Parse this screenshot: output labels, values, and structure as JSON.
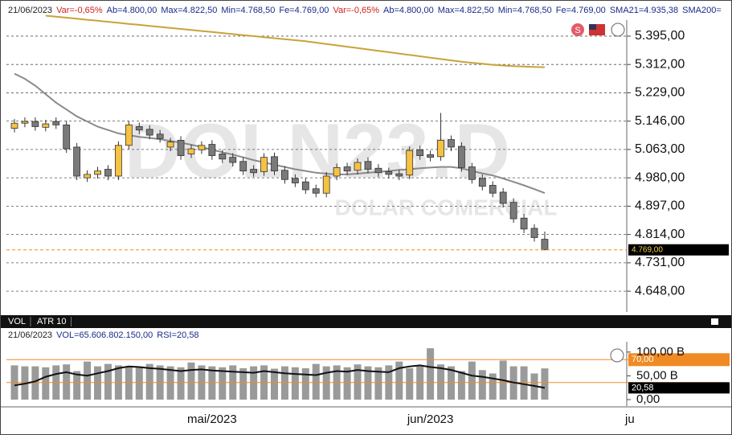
{
  "chart_data": [
    {
      "type": "candlestick",
      "title": "DOLN23:D",
      "subtitle": "DOLAR COMERCIAL",
      "header_items": [
        {
          "text": "21/06/2023",
          "color": "#222222"
        },
        {
          "text": "Var=-0,65%",
          "color": "#d02020"
        },
        {
          "text": "Ab=4.800,00",
          "color": "#1a2a8a"
        },
        {
          "text": "Max=4.822,50",
          "color": "#1a2a8a"
        },
        {
          "text": "Min=4.768,50",
          "color": "#1a2a8a"
        },
        {
          "text": "Fe=4.769,00",
          "color": "#1a2a8a"
        },
        {
          "text": "Var=-0,65%",
          "color": "#d02020"
        },
        {
          "text": "Ab=4.800,00",
          "color": "#1a2a8a"
        },
        {
          "text": "Max=4.822,50",
          "color": "#1a2a8a"
        },
        {
          "text": "Min=4.768,50",
          "color": "#1a2a8a"
        },
        {
          "text": "Fe=4.769,00",
          "color": "#1a2a8a"
        },
        {
          "text": "SMA21=4.935,38",
          "color": "#1a2a8a"
        },
        {
          "text": "SMA200=",
          "color": "#1a2a8a"
        }
      ],
      "categories": [
        null,
        null,
        null,
        null,
        null,
        null,
        null,
        null,
        null,
        null,
        null,
        null,
        null,
        null,
        null,
        null,
        null,
        null,
        null,
        "mai/2023",
        null,
        null,
        null,
        null,
        null,
        null,
        null,
        null,
        null,
        null,
        null,
        null,
        null,
        null,
        null,
        null,
        null,
        null,
        null,
        null,
        "jun/2023",
        null,
        null,
        null,
        null,
        null,
        null,
        null,
        null,
        null,
        null,
        null
      ],
      "extra_x_label": "ju",
      "open": [
        5125,
        5140,
        5145,
        5128,
        5145,
        5135,
        5070,
        4980,
        4990,
        5005,
        4985,
        5075,
        5130,
        5122,
        5108,
        5070,
        5090,
        5050,
        5062,
        5078,
        5050,
        5040,
        5028,
        5005,
        4998,
        5042,
        5002,
        4978,
        4968,
        4948,
        4935,
        4985,
        5012,
        5002,
        5028,
        5008,
        4998,
        4992,
        4988,
        5062,
        5048,
        5042,
        5092,
        5072,
        5012,
        4978,
        4958,
        4938,
        4908,
        4862,
        4832,
        4800
      ],
      "high": [
        5152,
        5157,
        5157,
        5150,
        5157,
        5147,
        5082,
        5002,
        5012,
        5017,
        5087,
        5147,
        5142,
        5134,
        5120,
        5097,
        5102,
        5077,
        5087,
        5090,
        5062,
        5052,
        5040,
        5017,
        5052,
        5054,
        5014,
        4990,
        4980,
        4960,
        4997,
        5022,
        5024,
        5037,
        5040,
        5020,
        5010,
        5004,
        5072,
        5074,
        5060,
        5170,
        5104,
        5084,
        5024,
        4990,
        4970,
        4950,
        4920,
        4874,
        4844,
        4822.5
      ],
      "low": [
        5113,
        5128,
        5118,
        5116,
        5123,
        5053,
        4973,
        4968,
        4978,
        4973,
        4973,
        5063,
        5108,
        5093,
        5083,
        5058,
        5033,
        5038,
        5050,
        5033,
        5023,
        5013,
        4988,
        4983,
        4986,
        4988,
        4963,
        4953,
        4933,
        4923,
        4923,
        4973,
        4988,
        4990,
        4993,
        4983,
        4978,
        4973,
        4976,
        5033,
        5028,
        5030,
        5058,
        4998,
        4963,
        4943,
        4923,
        4893,
        4848,
        4818,
        4793,
        4768.5
      ],
      "close": [
        5140,
        5145,
        5130,
        5138,
        5135,
        5065,
        4985,
        4990,
        5000,
        4985,
        5075,
        5135,
        5120,
        5105,
        5095,
        5085,
        5045,
        5065,
        5075,
        5045,
        5035,
        5025,
        5000,
        4995,
        5040,
        5000,
        4975,
        4965,
        4945,
        4935,
        4985,
        5010,
        5000,
        5025,
        5005,
        4995,
        4990,
        4985,
        5060,
        5045,
        5040,
        5090,
        5070,
        5010,
        4975,
        4955,
        4935,
        4905,
        4860,
        4830,
        4805,
        4769
      ],
      "up_color": "#f5c242",
      "down_color": "#7a7a7a",
      "series": [
        {
          "color": "#8a8a8a",
          "values": [
            5285,
            5270,
            5250,
            5225,
            5200,
            5180,
            5160,
            5145,
            5130,
            5120,
            5110,
            5105,
            5100,
            5097,
            5093,
            5088,
            5083,
            5077,
            5070,
            5062,
            5055,
            5048,
            5040,
            5032,
            5025,
            5018,
            5012,
            5005,
            5000,
            4995,
            4992,
            4990,
            4990,
            4992,
            4995,
            4997,
            5000,
            5003,
            5005,
            5008,
            5010,
            5012,
            5012,
            5008,
            5000,
            4993,
            4987,
            4978,
            4968,
            4958,
            4947,
            4935.38
          ]
        },
        {
          "color": "#c9a23a",
          "values": [
            null,
            null,
            null,
            5455,
            5452,
            5449,
            5446,
            5443,
            5440,
            5437,
            5434,
            5431,
            5428,
            5425,
            5422,
            5419,
            5416,
            5413,
            5410,
            5407,
            5404,
            5401,
            5398,
            5395,
            5392,
            5389,
            5386,
            5383,
            5380,
            5376,
            5372,
            5368,
            5364,
            5360,
            5356,
            5352,
            5348,
            5344,
            5340,
            5336,
            5332,
            5328,
            5324,
            5320,
            5317,
            5314,
            5311,
            5309,
            5307,
            5306,
            5305,
            5304
          ]
        }
      ],
      "last_label": "4.769,00",
      "last_color": "#f08a24",
      "ylim": [
        4587,
        5482
      ],
      "yticks": [
        {
          "value": 5395,
          "label": "5.395,00"
        },
        {
          "value": 5312,
          "label": "5.312,00"
        },
        {
          "value": 5229,
          "label": "5.229,00"
        },
        {
          "value": 5146,
          "label": "5.146,00"
        },
        {
          "value": 5063,
          "label": "5.063,00"
        },
        {
          "value": 4980,
          "label": "4.980,00"
        },
        {
          "value": 4897,
          "label": "4.897,00"
        },
        {
          "value": 4814,
          "label": "4.814,00"
        },
        {
          "value": 4731,
          "label": "4.731,00"
        },
        {
          "value": 4648,
          "label": "4.648,00"
        }
      ],
      "grid": true
    },
    {
      "type": "bar",
      "tabs": [
        "VOL",
        "ATR 10"
      ],
      "header_items": [
        {
          "text": "21/06/2023",
          "color": "#222222"
        },
        {
          "text": "VOL=65.606.802.150,00",
          "color": "#1a2a8a"
        },
        {
          "text": "RSI=20,58",
          "color": "#1a2a8a"
        }
      ],
      "values": [
        72,
        70,
        70,
        68,
        72,
        74,
        60,
        80,
        70,
        75,
        72,
        68,
        70,
        75,
        72,
        70,
        68,
        78,
        72,
        70,
        68,
        72,
        66,
        70,
        72,
        65,
        70,
        68,
        66,
        75,
        70,
        72,
        68,
        74,
        70,
        68,
        72,
        80,
        66,
        70,
        108,
        74,
        70,
        60,
        80,
        62,
        55,
        82,
        70,
        70,
        55,
        65.61
      ],
      "color": "#9a9a9a",
      "ylim": [
        0,
        120
      ],
      "yticks": [
        {
          "value": 100,
          "label": "100,00 B"
        },
        {
          "value": 50,
          "label": "50,00 B"
        },
        {
          "value": 0,
          "label": "0,00"
        }
      ],
      "rsi": {
        "color": "#111111",
        "values": [
          25,
          28,
          32,
          40,
          45,
          48,
          44,
          42,
          46,
          50,
          55,
          58,
          57,
          55,
          54,
          52,
          50,
          52,
          53,
          51,
          50,
          49,
          48,
          47,
          50,
          48,
          46,
          45,
          44,
          43,
          47,
          50,
          49,
          52,
          50,
          49,
          48,
          55,
          58,
          60,
          57,
          55,
          52,
          47,
          42,
          40,
          37,
          34,
          30,
          27,
          24,
          20.58
        ],
        "last_label": "20,58"
      },
      "y2lim": [
        0,
        100
      ],
      "y2ticks": [
        {
          "value": 70,
          "label": "70,00"
        },
        {
          "value": 30,
          "label": ""
        }
      ],
      "level_color": "#f08a24"
    }
  ]
}
